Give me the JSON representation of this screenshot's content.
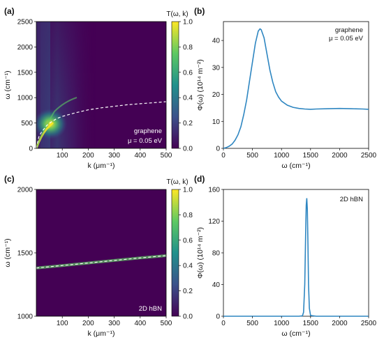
{
  "figure": {
    "panels": [
      {
        "letter": "(a)",
        "label": "graphene",
        "label2": "μ = 0.05 eV"
      },
      {
        "letter": "(b)",
        "label": "graphene",
        "label2": "μ = 0.05 eV"
      },
      {
        "letter": "(c)",
        "label": "2D hBN"
      },
      {
        "letter": "(d)",
        "label": "2D hBN"
      }
    ]
  },
  "chart_data": [
    {
      "id": "a",
      "type": "heatmap",
      "colorbar_title": "T(ω, k)",
      "colorbar_ticks": [
        "0.0",
        "0.2",
        "0.4",
        "0.6",
        "0.8",
        "1.0"
      ],
      "colorbar_range": [
        0,
        1
      ],
      "colormap": [
        "#440154",
        "#3b528b",
        "#21918c",
        "#5ec962",
        "#fde725"
      ],
      "xlabel": "k (μm⁻¹)",
      "ylabel": "ω (cm⁻¹)",
      "xlim": [
        0,
        500
      ],
      "ylim": [
        0,
        2500
      ],
      "xticks": [
        100,
        200,
        300,
        400,
        500
      ],
      "yticks": [
        0,
        500,
        1000,
        1500,
        2000,
        2500
      ],
      "dashed_curve": {
        "x": [
          0,
          10,
          20,
          40,
          60,
          80,
          100,
          150,
          200,
          250,
          300,
          350,
          400,
          450,
          500
        ],
        "y": [
          0,
          230,
          320,
          450,
          530,
          590,
          630,
          700,
          760,
          800,
          830,
          860,
          880,
          900,
          920
        ]
      }
    },
    {
      "id": "b",
      "type": "line",
      "xlabel": "ω (cm⁻¹)",
      "ylabel": "Φ(ω) (10¹⁴ m⁻²)",
      "xlim": [
        0,
        2500
      ],
      "ylim": [
        0,
        47
      ],
      "xticks": [
        0,
        500,
        1000,
        1500,
        2000,
        2500
      ],
      "yticks": [
        0,
        10,
        20,
        30,
        40
      ],
      "color": "#2e86c1",
      "series": [
        {
          "x": [
            0,
            50,
            100,
            150,
            200,
            250,
            300,
            350,
            400,
            450,
            500,
            550,
            600,
            630,
            650,
            700,
            750,
            800,
            850,
            900,
            950,
            1000,
            1100,
            1200,
            1300,
            1400,
            1500,
            1600,
            1800,
            2000,
            2200,
            2400,
            2500
          ],
          "values": [
            0,
            0.3,
            0.8,
            1.6,
            3,
            5,
            8,
            12.5,
            18,
            25,
            32,
            39,
            43.5,
            44.3,
            44,
            41,
            35,
            29,
            24.5,
            21,
            19,
            17.5,
            16,
            15.2,
            14.8,
            14.6,
            14.5,
            14.6,
            14.7,
            14.8,
            14.7,
            14.6,
            14.5
          ]
        }
      ]
    },
    {
      "id": "c",
      "type": "heatmap",
      "colorbar_title": "T(ω, k)",
      "colorbar_ticks": [
        "0.0",
        "0.2",
        "0.4",
        "0.6",
        "0.8",
        "1.0"
      ],
      "colorbar_range": [
        0,
        1
      ],
      "colormap": [
        "#440154",
        "#3b528b",
        "#21918c",
        "#5ec962",
        "#fde725"
      ],
      "xlabel": "k (μm⁻¹)",
      "ylabel": "ω (cm⁻¹)",
      "xlim": [
        0,
        500
      ],
      "ylim": [
        1000,
        2000
      ],
      "xticks": [
        100,
        200,
        300,
        400,
        500
      ],
      "yticks": [
        1000,
        1500,
        2000
      ],
      "dashed_curve": {
        "x": [
          0,
          100,
          200,
          300,
          400,
          500
        ],
        "y": [
          1380,
          1400,
          1420,
          1440,
          1460,
          1478
        ]
      }
    },
    {
      "id": "d",
      "type": "line",
      "xlabel": "ω (cm⁻¹)",
      "ylabel": "Φ(ω) (10¹⁴ m⁻²)",
      "xlim": [
        0,
        2500
      ],
      "ylim": [
        0,
        160
      ],
      "xticks": [
        0,
        500,
        1000,
        1500,
        2000,
        2500
      ],
      "yticks": [
        0,
        40,
        80,
        120,
        160
      ],
      "color": "#2e86c1",
      "series": [
        {
          "x": [
            0,
            1000,
            1300,
            1360,
            1380,
            1400,
            1415,
            1425,
            1435,
            1445,
            1455,
            1465,
            1480,
            1500,
            1600,
            2000,
            2500
          ],
          "values": [
            0,
            0,
            0,
            0.5,
            5,
            40,
            100,
            140,
            149,
            135,
            90,
            40,
            10,
            1,
            0,
            0,
            0
          ]
        }
      ]
    }
  ]
}
